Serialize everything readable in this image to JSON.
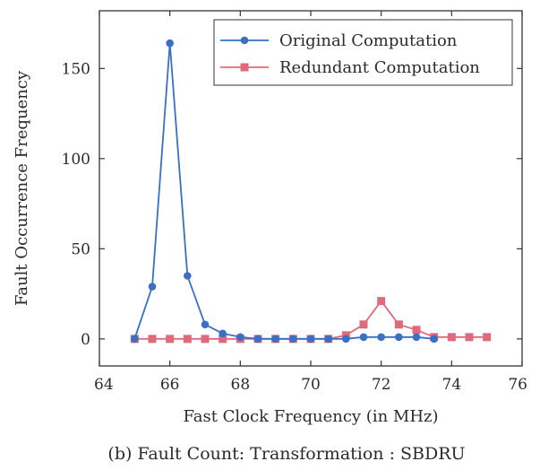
{
  "chart_data": {
    "type": "line",
    "xlabel": "Fast Clock Frequency (in MHz)",
    "ylabel": "Fault Occurrence Frequency",
    "xlim": [
      64,
      76
    ],
    "ylim": [
      -15,
      182
    ],
    "xticks": [
      "64",
      "66",
      "68",
      "70",
      "72",
      "74",
      "76"
    ],
    "yticks": [
      "0",
      "50",
      "100",
      "150"
    ],
    "grid": false,
    "legend": "top-right",
    "series": [
      {
        "name": "Original Computation",
        "color": "#3a6fc4",
        "marker": "circle",
        "x": [
          65,
          65.5,
          66,
          66.5,
          67,
          67.5,
          68,
          68.5,
          69,
          69.5,
          70,
          70.5,
          71,
          71.5,
          72,
          72.5,
          73,
          73.5
        ],
        "y": [
          0,
          29,
          164,
          35,
          8,
          3,
          1,
          0,
          0,
          0,
          0,
          0,
          0,
          1,
          1,
          1,
          1,
          0
        ]
      },
      {
        "name": "Redundant Computation",
        "color": "#e06a7d",
        "marker": "square",
        "x": [
          65,
          65.5,
          66,
          66.5,
          67,
          67.5,
          68,
          68.5,
          69,
          69.5,
          70,
          70.5,
          71,
          71.5,
          72,
          72.5,
          73,
          73.5,
          74,
          74.5,
          75
        ],
        "y": [
          0,
          0,
          0,
          0,
          0,
          0,
          0,
          0,
          0,
          0,
          0,
          0,
          2,
          8,
          21,
          8,
          5,
          1,
          1,
          1,
          1
        ]
      }
    ]
  },
  "caption": "(b) Fault Count: Transformation : SBDRU"
}
